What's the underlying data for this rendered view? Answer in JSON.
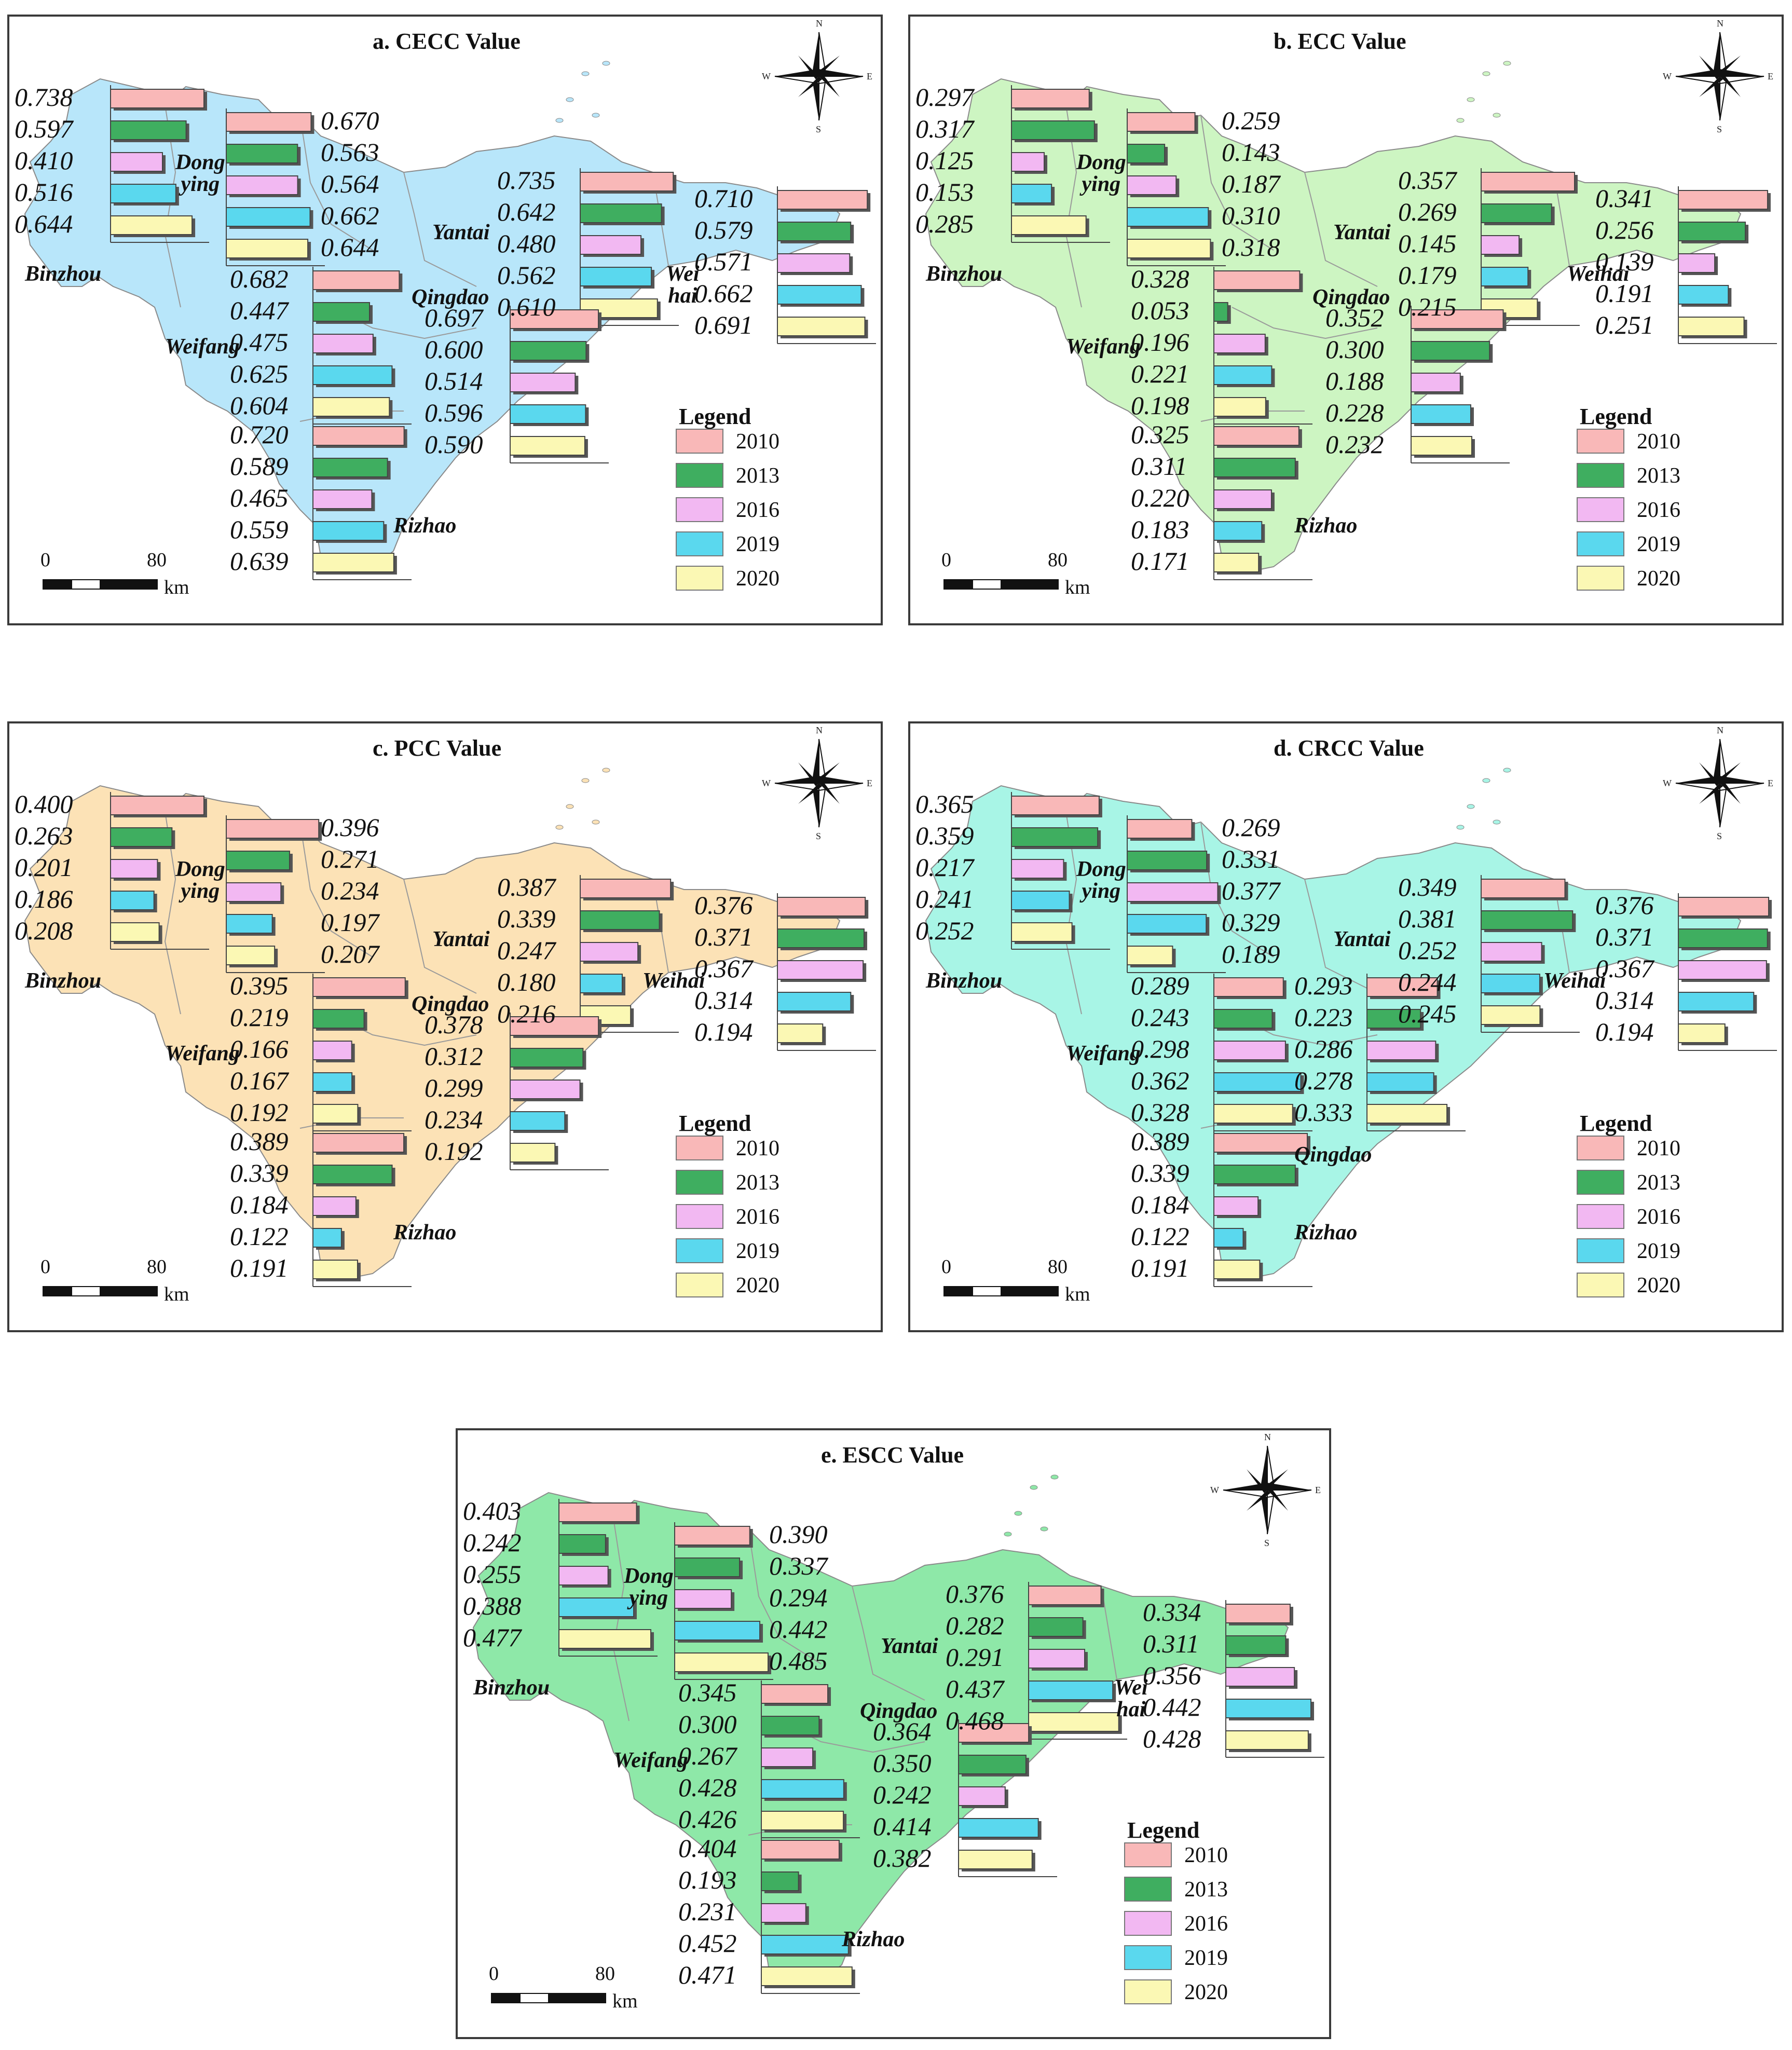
{
  "legend": {
    "title": "Legend",
    "years": [
      "2010",
      "2013",
      "2016",
      "2019",
      "2020"
    ],
    "colors": [
      "#f9b8b8",
      "#3fae60",
      "#f2b8f2",
      "#5ad8ee",
      "#fbf8b4"
    ]
  },
  "scale": {
    "start": "0",
    "mid": "80",
    "unit": "km"
  },
  "compass": {
    "n": "N",
    "s": "S",
    "e": "E",
    "w": "W"
  },
  "panels": [
    {
      "title": "a. CECC Value",
      "map_color": "#b8e6fa",
      "cities": [
        {
          "name": "Binzhou",
          "values": [
            "0.738",
            "0.597",
            "0.410",
            "0.516",
            "0.644"
          ]
        },
        {
          "name": "Dongying",
          "label_lines": [
            "Dong",
            "ying"
          ],
          "values": [
            "0.670",
            "0.563",
            "0.564",
            "0.662",
            "0.644"
          ]
        },
        {
          "name": "Yantai",
          "values": [
            "0.735",
            "0.642",
            "0.480",
            "0.562",
            "0.610"
          ]
        },
        {
          "name": "Weihai",
          "label_lines": [
            "Wei",
            "hai"
          ],
          "values": [
            "0.710",
            "0.579",
            "0.571",
            "0.662",
            "0.691"
          ]
        },
        {
          "name": "Weifang",
          "values": [
            "0.682",
            "0.447",
            "0.475",
            "0.625",
            "0.604"
          ]
        },
        {
          "name": "Qingdao",
          "values": [
            "0.697",
            "0.600",
            "0.514",
            "0.596",
            "0.590"
          ]
        },
        {
          "name": "Rizhao",
          "values": [
            "0.720",
            "0.589",
            "0.465",
            "0.559",
            "0.639"
          ]
        }
      ]
    },
    {
      "title": "b. ECC Value",
      "map_color": "#cdf5c2",
      "cities": [
        {
          "name": "Binzhou",
          "values": [
            "0.297",
            "0.317",
            "0.125",
            "0.153",
            "0.285"
          ]
        },
        {
          "name": "Dongying",
          "label_lines": [
            "Dong",
            "ying"
          ],
          "values": [
            "0.259",
            "0.143",
            "0.187",
            "0.310",
            "0.318"
          ]
        },
        {
          "name": "Yantai",
          "values": [
            "0.357",
            "0.269",
            "0.145",
            "0.179",
            "0.215"
          ]
        },
        {
          "name": "Weihai",
          "values": [
            "0.341",
            "0.256",
            "0.139",
            "0.191",
            "0.251"
          ]
        },
        {
          "name": "Weifang",
          "values": [
            "0.328",
            "0.053",
            "0.196",
            "0.221",
            "0.198"
          ]
        },
        {
          "name": "Qingdao",
          "values": [
            "0.352",
            "0.300",
            "0.188",
            "0.228",
            "0.232"
          ]
        },
        {
          "name": "Rizhao",
          "values": [
            "0.325",
            "0.311",
            "0.220",
            "0.183",
            "0.171"
          ]
        }
      ]
    },
    {
      "title": "c. PCC Value",
      "map_color": "#fce2b6",
      "cities": [
        {
          "name": "Binzhou",
          "values": [
            "0.400",
            "0.263",
            "0.201",
            "0.186",
            "0.208"
          ]
        },
        {
          "name": "Dongying",
          "label_lines": [
            "Dong",
            "ying"
          ],
          "values": [
            "0.396",
            "0.271",
            "0.234",
            "0.197",
            "0.207"
          ]
        },
        {
          "name": "Yantai",
          "values": [
            "0.387",
            "0.339",
            "0.247",
            "0.180",
            "0.216"
          ]
        },
        {
          "name": "Weihai",
          "values": [
            "0.376",
            "0.371",
            "0.367",
            "0.314",
            "0.194"
          ]
        },
        {
          "name": "Weifang",
          "values": [
            "0.395",
            "0.219",
            "0.166",
            "0.167",
            "0.192"
          ]
        },
        {
          "name": "Qingdao",
          "values": [
            "0.378",
            "0.312",
            "0.299",
            "0.234",
            "0.192"
          ]
        },
        {
          "name": "Rizhao",
          "values": [
            "0.389",
            "0.339",
            "0.184",
            "0.122",
            "0.191"
          ]
        }
      ]
    },
    {
      "title": "d. CRCC Value",
      "map_color": "#a8f5e6",
      "cities": [
        {
          "name": "Binzhou",
          "values": [
            "0.365",
            "0.359",
            "0.217",
            "0.241",
            "0.252"
          ]
        },
        {
          "name": "Dongying",
          "label_lines": [
            "Dong",
            "ying"
          ],
          "values": [
            "0.269",
            "0.331",
            "0.377",
            "0.329",
            "0.189"
          ]
        },
        {
          "name": "Yantai",
          "values": [
            "0.349",
            "0.381",
            "0.252",
            "0.244",
            "0.245"
          ]
        },
        {
          "name": "Weihai",
          "values": [
            "0.376",
            "0.371",
            "0.367",
            "0.314",
            "0.194"
          ]
        },
        {
          "name": "Weifang",
          "values": [
            "0.289",
            "0.243",
            "0.298",
            "0.362",
            "0.328"
          ]
        },
        {
          "name": "Qingdao",
          "values": [
            "0.293",
            "0.223",
            "0.286",
            "0.278",
            "0.333"
          ]
        },
        {
          "name": "Rizhao",
          "values": [
            "0.389",
            "0.339",
            "0.184",
            "0.122",
            "0.191"
          ]
        }
      ]
    },
    {
      "title": "e. ESCC Value",
      "map_color": "#8ee8a8",
      "cities": [
        {
          "name": "Binzhou",
          "values": [
            "0.403",
            "0.242",
            "0.255",
            "0.388",
            "0.477"
          ]
        },
        {
          "name": "Dongying",
          "label_lines": [
            "Dong",
            "ying"
          ],
          "values": [
            "0.390",
            "0.337",
            "0.294",
            "0.442",
            "0.485"
          ]
        },
        {
          "name": "Yantai",
          "values": [
            "0.376",
            "0.282",
            "0.291",
            "0.437",
            "0.468"
          ]
        },
        {
          "name": "Weihai",
          "label_lines": [
            "Wei",
            "hai"
          ],
          "values": [
            "0.334",
            "0.311",
            "0.356",
            "0.442",
            "0.428"
          ]
        },
        {
          "name": "Weifang",
          "values": [
            "0.345",
            "0.300",
            "0.267",
            "0.428",
            "0.426"
          ]
        },
        {
          "name": "Qingdao",
          "values": [
            "0.364",
            "0.350",
            "0.242",
            "0.414",
            "0.382"
          ]
        },
        {
          "name": "Rizhao",
          "values": [
            "0.404",
            "0.193",
            "0.231",
            "0.452",
            "0.471"
          ]
        }
      ]
    }
  ]
}
